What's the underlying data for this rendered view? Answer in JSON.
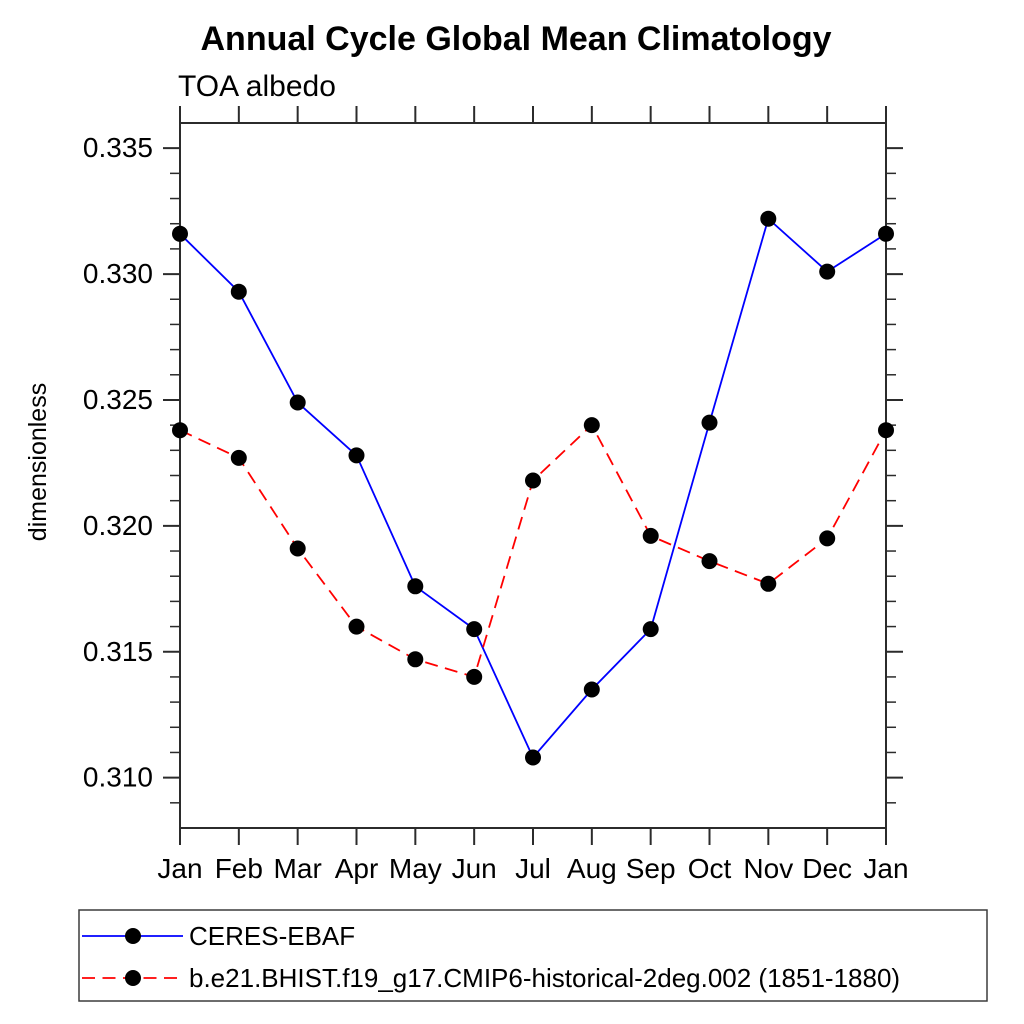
{
  "title": "Annual Cycle Global Mean Climatology",
  "subtitle": "TOA albedo",
  "chart_data": {
    "type": "line",
    "categories": [
      "Jan",
      "Feb",
      "Mar",
      "Apr",
      "May",
      "Jun",
      "Jul",
      "Aug",
      "Sep",
      "Oct",
      "Nov",
      "Dec",
      "Jan"
    ],
    "series": [
      {
        "name": "CERES-EBAF",
        "color": "#0000ff",
        "line_style": "solid",
        "marker": "filled-circle",
        "marker_color": "#000000",
        "values": [
          0.3316,
          0.3293,
          0.3249,
          0.3228,
          0.3176,
          0.3159,
          0.3108,
          0.3135,
          0.3159,
          0.3241,
          0.3322,
          0.3301,
          0.3316
        ]
      },
      {
        "name": "b.e21.BHIST.f19_g17.CMIP6-historical-2deg.002 (1851-1880)",
        "color": "#ff0000",
        "line_style": "dashed",
        "marker": "filled-circle",
        "marker_color": "#000000",
        "values": [
          0.3238,
          0.3227,
          0.3191,
          0.316,
          0.3147,
          0.314,
          0.3218,
          0.324,
          0.3196,
          0.3186,
          0.3177,
          0.3195,
          0.3238
        ]
      }
    ],
    "xlabel": "",
    "ylabel": "dimensionless",
    "ylim": [
      0.308,
      0.336
    ],
    "ytick_major": [
      0.31,
      0.315,
      0.32,
      0.325,
      0.33,
      0.335
    ],
    "ytick_labels": [
      "0.310",
      "0.315",
      "0.320",
      "0.325",
      "0.330",
      "0.335"
    ],
    "ytick_minor_step": 0.001,
    "grid": false,
    "legend_position": "bottom-left"
  }
}
